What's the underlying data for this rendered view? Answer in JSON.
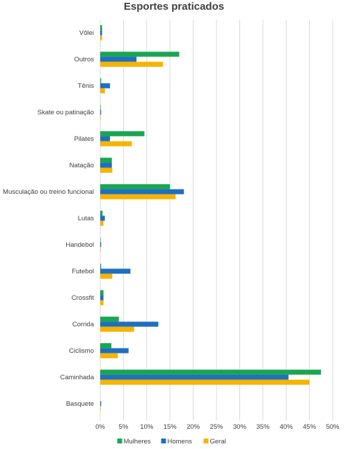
{
  "chart_data": {
    "type": "bar",
    "orientation": "horizontal",
    "title": "Esportes praticados",
    "categories": [
      "Vôlei",
      "Outros",
      "Tênis",
      "Skate ou patinação",
      "Pilates",
      "Natação",
      "Musculação ou treino funcional",
      "Lutas",
      "Handebol",
      "Futebol",
      "Crossfit",
      "Corrida",
      "Ciclismo",
      "Caminhada",
      "Basquete"
    ],
    "series": [
      {
        "name": "Mulheres",
        "color": "#1aa651",
        "values": [
          0.4,
          17.0,
          0.2,
          0.1,
          9.5,
          2.5,
          15.0,
          0.5,
          0.1,
          0.2,
          0.7,
          4.0,
          2.4,
          47.5,
          0.0
        ]
      },
      {
        "name": "Homens",
        "color": "#1f6fbe",
        "values": [
          0.4,
          7.8,
          2.1,
          0.2,
          2.1,
          2.5,
          18.0,
          1.0,
          0.2,
          6.5,
          0.7,
          12.5,
          6.1,
          40.5,
          0.2
        ]
      },
      {
        "name": "Geral",
        "color": "#f5b400",
        "values": [
          0.4,
          13.5,
          1.0,
          0.1,
          6.8,
          2.6,
          16.2,
          0.7,
          0.1,
          2.6,
          0.7,
          7.3,
          3.8,
          45.0,
          0.1
        ]
      }
    ],
    "xlim": [
      0,
      50
    ],
    "xticks": [
      "0%",
      "5%",
      "10%",
      "15%",
      "20%",
      "25%",
      "30%",
      "35%",
      "40%",
      "45%",
      "50%"
    ],
    "grid": true,
    "legend": "bottom"
  }
}
